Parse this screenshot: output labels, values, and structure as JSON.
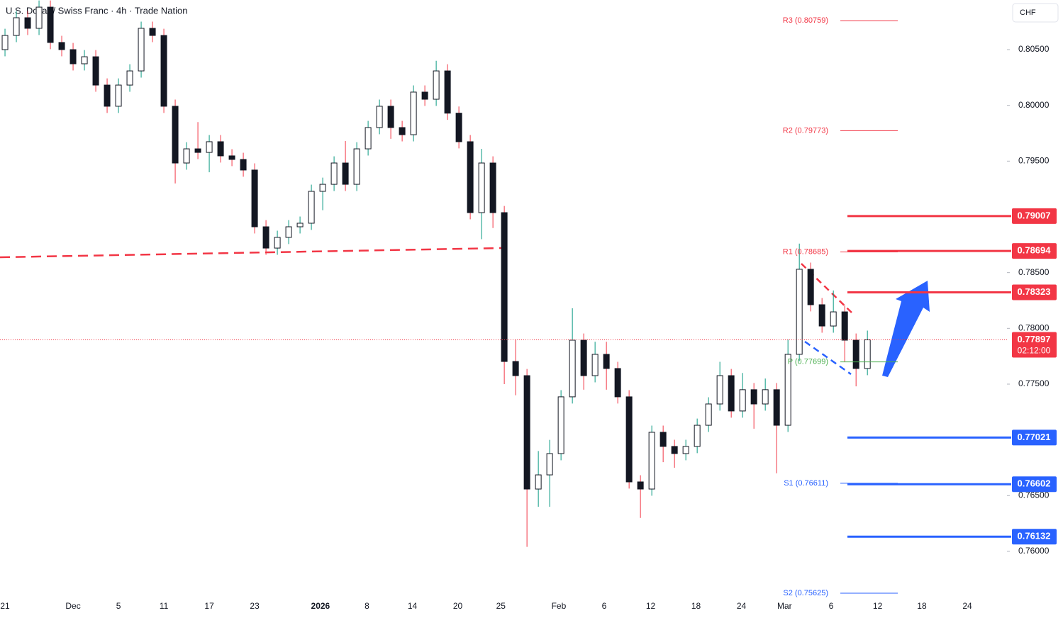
{
  "chart_data": {
    "type": "candlestick",
    "title": "U.S. Dollar / Swiss Franc · 4h · Trade Nation",
    "currency": "CHF",
    "x": [
      0,
      1,
      2,
      3,
      4,
      5,
      6,
      7,
      8,
      9,
      10,
      11,
      12,
      13,
      14,
      15,
      16,
      17,
      18,
      19,
      20,
      21,
      22,
      23,
      24,
      25,
      26,
      27,
      28,
      29,
      30,
      31,
      32,
      33,
      34,
      35,
      36,
      37,
      38,
      39,
      40,
      41,
      42,
      43,
      44,
      45,
      46,
      47,
      48,
      49,
      50,
      51,
      52,
      53,
      54,
      55,
      56,
      57,
      58,
      59,
      60,
      61,
      62,
      63,
      64,
      65,
      66,
      67,
      68,
      69,
      70,
      71,
      72,
      73,
      74,
      75,
      76
    ],
    "open": [
      0.805,
      0.80627,
      0.80786,
      0.80691,
      0.80881,
      0.80564,
      0.805,
      0.80373,
      0.80436,
      0.80182,
      0.79992,
      0.80182,
      0.80309,
      0.80691,
      0.80627,
      0.79992,
      0.79483,
      0.7961,
      0.79578,
      0.79674,
      0.79547,
      0.79515,
      0.7942,
      0.78911,
      0.7872,
      0.78816,
      0.78911,
      0.78943,
      0.79229,
      0.79292,
      0.79483,
      0.79292,
      0.7961,
      0.79801,
      0.79992,
      0.79801,
      0.79737,
      0.80119,
      0.80055,
      0.80309,
      0.7993,
      0.79674,
      0.79038,
      0.79483,
      0.79038,
      0.77703,
      0.77576,
      0.76559,
      0.76686,
      0.76877,
      0.77386,
      0.77894,
      0.77576,
      0.77767,
      0.7764,
      0.77386,
      0.76623,
      0.76559,
      0.77068,
      0.76941,
      0.76877,
      0.76941,
      0.77131,
      0.77322,
      0.77576,
      0.77259,
      0.7745,
      0.77322,
      0.7745,
      0.77131,
      0.77767,
      0.7853,
      0.78212,
      0.78021,
      0.78148,
      0.77894,
      0.7764
    ],
    "high": [
      0.80687,
      0.80846,
      0.80846,
      0.80941,
      0.80941,
      0.80624,
      0.8056,
      0.80496,
      0.80496,
      0.80242,
      0.80242,
      0.80369,
      0.80751,
      0.80751,
      0.80687,
      0.80052,
      0.7967,
      0.7985,
      0.79734,
      0.79734,
      0.79607,
      0.79575,
      0.7948,
      0.78971,
      0.78876,
      0.78971,
      0.79003,
      0.79289,
      0.79352,
      0.79543,
      0.7968,
      0.7967,
      0.79861,
      0.80052,
      0.80052,
      0.79861,
      0.80179,
      0.80179,
      0.804,
      0.80369,
      0.7999,
      0.79734,
      0.7961,
      0.79543,
      0.79098,
      0.779,
      0.77636,
      0.769,
      0.77,
      0.77446,
      0.7818,
      0.77954,
      0.7788,
      0.7788,
      0.777,
      0.77446,
      0.76683,
      0.77128,
      0.77128,
      0.77001,
      0.77001,
      0.77191,
      0.77382,
      0.777,
      0.77636,
      0.776,
      0.7751,
      0.7755,
      0.7751,
      0.779,
      0.7876,
      0.7859,
      0.78272,
      0.7834,
      0.78208,
      0.77954,
      0.7798
    ],
    "low": [
      0.8044,
      0.80567,
      0.80631,
      0.80631,
      0.80504,
      0.8044,
      0.80313,
      0.80313,
      0.80122,
      0.79932,
      0.79932,
      0.80122,
      0.80249,
      0.80567,
      0.79932,
      0.793,
      0.79423,
      0.79518,
      0.794,
      0.79487,
      0.79455,
      0.7936,
      0.78851,
      0.7866,
      0.7866,
      0.78756,
      0.78851,
      0.78883,
      0.7906,
      0.79232,
      0.79232,
      0.79232,
      0.7955,
      0.79741,
      0.797,
      0.79677,
      0.79677,
      0.79995,
      0.79995,
      0.7987,
      0.79614,
      0.78978,
      0.788,
      0.789,
      0.775,
      0.774,
      0.7604,
      0.764,
      0.764,
      0.76817,
      0.77326,
      0.7745,
      0.77516,
      0.7745,
      0.77326,
      0.76563,
      0.763,
      0.76499,
      0.768,
      0.7675,
      0.76817,
      0.76881,
      0.77071,
      0.77262,
      0.77199,
      0.77199,
      0.771,
      0.77262,
      0.767,
      0.77071,
      0.77707,
      0.78152,
      0.77961,
      0.77961,
      0.777,
      0.7748,
      0.7758
    ],
    "close": [
      0.80627,
      0.80786,
      0.80691,
      0.80881,
      0.80564,
      0.805,
      0.80373,
      0.80436,
      0.80182,
      0.79992,
      0.80182,
      0.80309,
      0.80691,
      0.80627,
      0.79992,
      0.79483,
      0.7961,
      0.79578,
      0.79674,
      0.79547,
      0.79515,
      0.7942,
      0.78911,
      0.7872,
      0.78816,
      0.78911,
      0.78943,
      0.79229,
      0.79292,
      0.79483,
      0.79292,
      0.7961,
      0.79801,
      0.79992,
      0.79801,
      0.79737,
      0.80119,
      0.80055,
      0.80309,
      0.7993,
      0.79674,
      0.79038,
      0.79483,
      0.79038,
      0.77703,
      0.77576,
      0.76559,
      0.76686,
      0.76877,
      0.77386,
      0.77894,
      0.77576,
      0.77767,
      0.7764,
      0.77386,
      0.76623,
      0.76559,
      0.77068,
      0.76941,
      0.76877,
      0.76941,
      0.77131,
      0.77322,
      0.77576,
      0.77259,
      0.7745,
      0.77322,
      0.7745,
      0.77131,
      0.77767,
      0.7853,
      0.78212,
      0.78021,
      0.78148,
      0.77894,
      0.7764,
      0.77897
    ],
    "up_color": "#089981",
    "down_color": "#f23645",
    "body_color": "#131722",
    "xlim": [
      -0.44,
      88.3
    ],
    "xticks": [
      {
        "value": 0,
        "label": "21"
      },
      {
        "value": 6,
        "label": "Dec"
      },
      {
        "value": 10,
        "label": "5"
      },
      {
        "value": 14,
        "label": "11"
      },
      {
        "value": 18,
        "label": "17"
      },
      {
        "value": 22,
        "label": "23"
      },
      {
        "value": 27.8,
        "label": "2026"
      },
      {
        "value": 31.9,
        "label": "8"
      },
      {
        "value": 35.9,
        "label": "14"
      },
      {
        "value": 39.9,
        "label": "20"
      },
      {
        "value": 43.7,
        "label": "25"
      },
      {
        "value": 48.8,
        "label": "Feb"
      },
      {
        "value": 52.8,
        "label": "6"
      },
      {
        "value": 56.9,
        "label": "12"
      },
      {
        "value": 60.9,
        "label": "18"
      },
      {
        "value": 64.9,
        "label": "24"
      },
      {
        "value": 68.7,
        "label": "Mar"
      },
      {
        "value": 72.8,
        "label": "6"
      },
      {
        "value": 76.9,
        "label": "12"
      },
      {
        "value": 80.8,
        "label": "18"
      },
      {
        "value": 84.8,
        "label": "24"
      }
    ],
    "ylim": [
      0.75574,
      0.80945
    ],
    "yticks": [
      {
        "value": 0.805,
        "label": "0.80500"
      },
      {
        "value": 0.8,
        "label": "0.80000"
      },
      {
        "value": 0.795,
        "label": "0.79500"
      },
      {
        "value": 0.785,
        "label": "0.78500"
      },
      {
        "value": 0.78,
        "label": "0.78000"
      },
      {
        "value": 0.775,
        "label": "0.77500"
      },
      {
        "value": 0.765,
        "label": "0.76500"
      },
      {
        "value": 0.76,
        "label": "0.76000"
      }
    ],
    "pivots": [
      {
        "value": 0.80759,
        "label": "R3 (0.80759)",
        "color": "#f23645"
      },
      {
        "value": 0.79773,
        "label": "R2 (0.79773)",
        "color": "#f23645"
      },
      {
        "value": 0.78685,
        "label": "R1 (0.78685)",
        "color": "#f23645"
      },
      {
        "value": 0.77699,
        "label": "P (0.77699)",
        "color": "#4caf50"
      },
      {
        "value": 0.76611,
        "label": "S1 (0.76611)",
        "color": "#2962ff"
      },
      {
        "value": 0.75625,
        "label": "S2 (0.75625)",
        "color": "#2962ff"
      }
    ],
    "resistance_levels": {
      "color": "#f23645",
      "values": [
        0.79007,
        0.78694,
        0.78323
      ]
    },
    "support_levels": {
      "color": "#2962ff",
      "values": [
        0.77021,
        0.76602,
        0.76132
      ]
    },
    "last_price": 0.77897,
    "countdown": "02:12:00",
    "last_price_color": "#f23645"
  }
}
